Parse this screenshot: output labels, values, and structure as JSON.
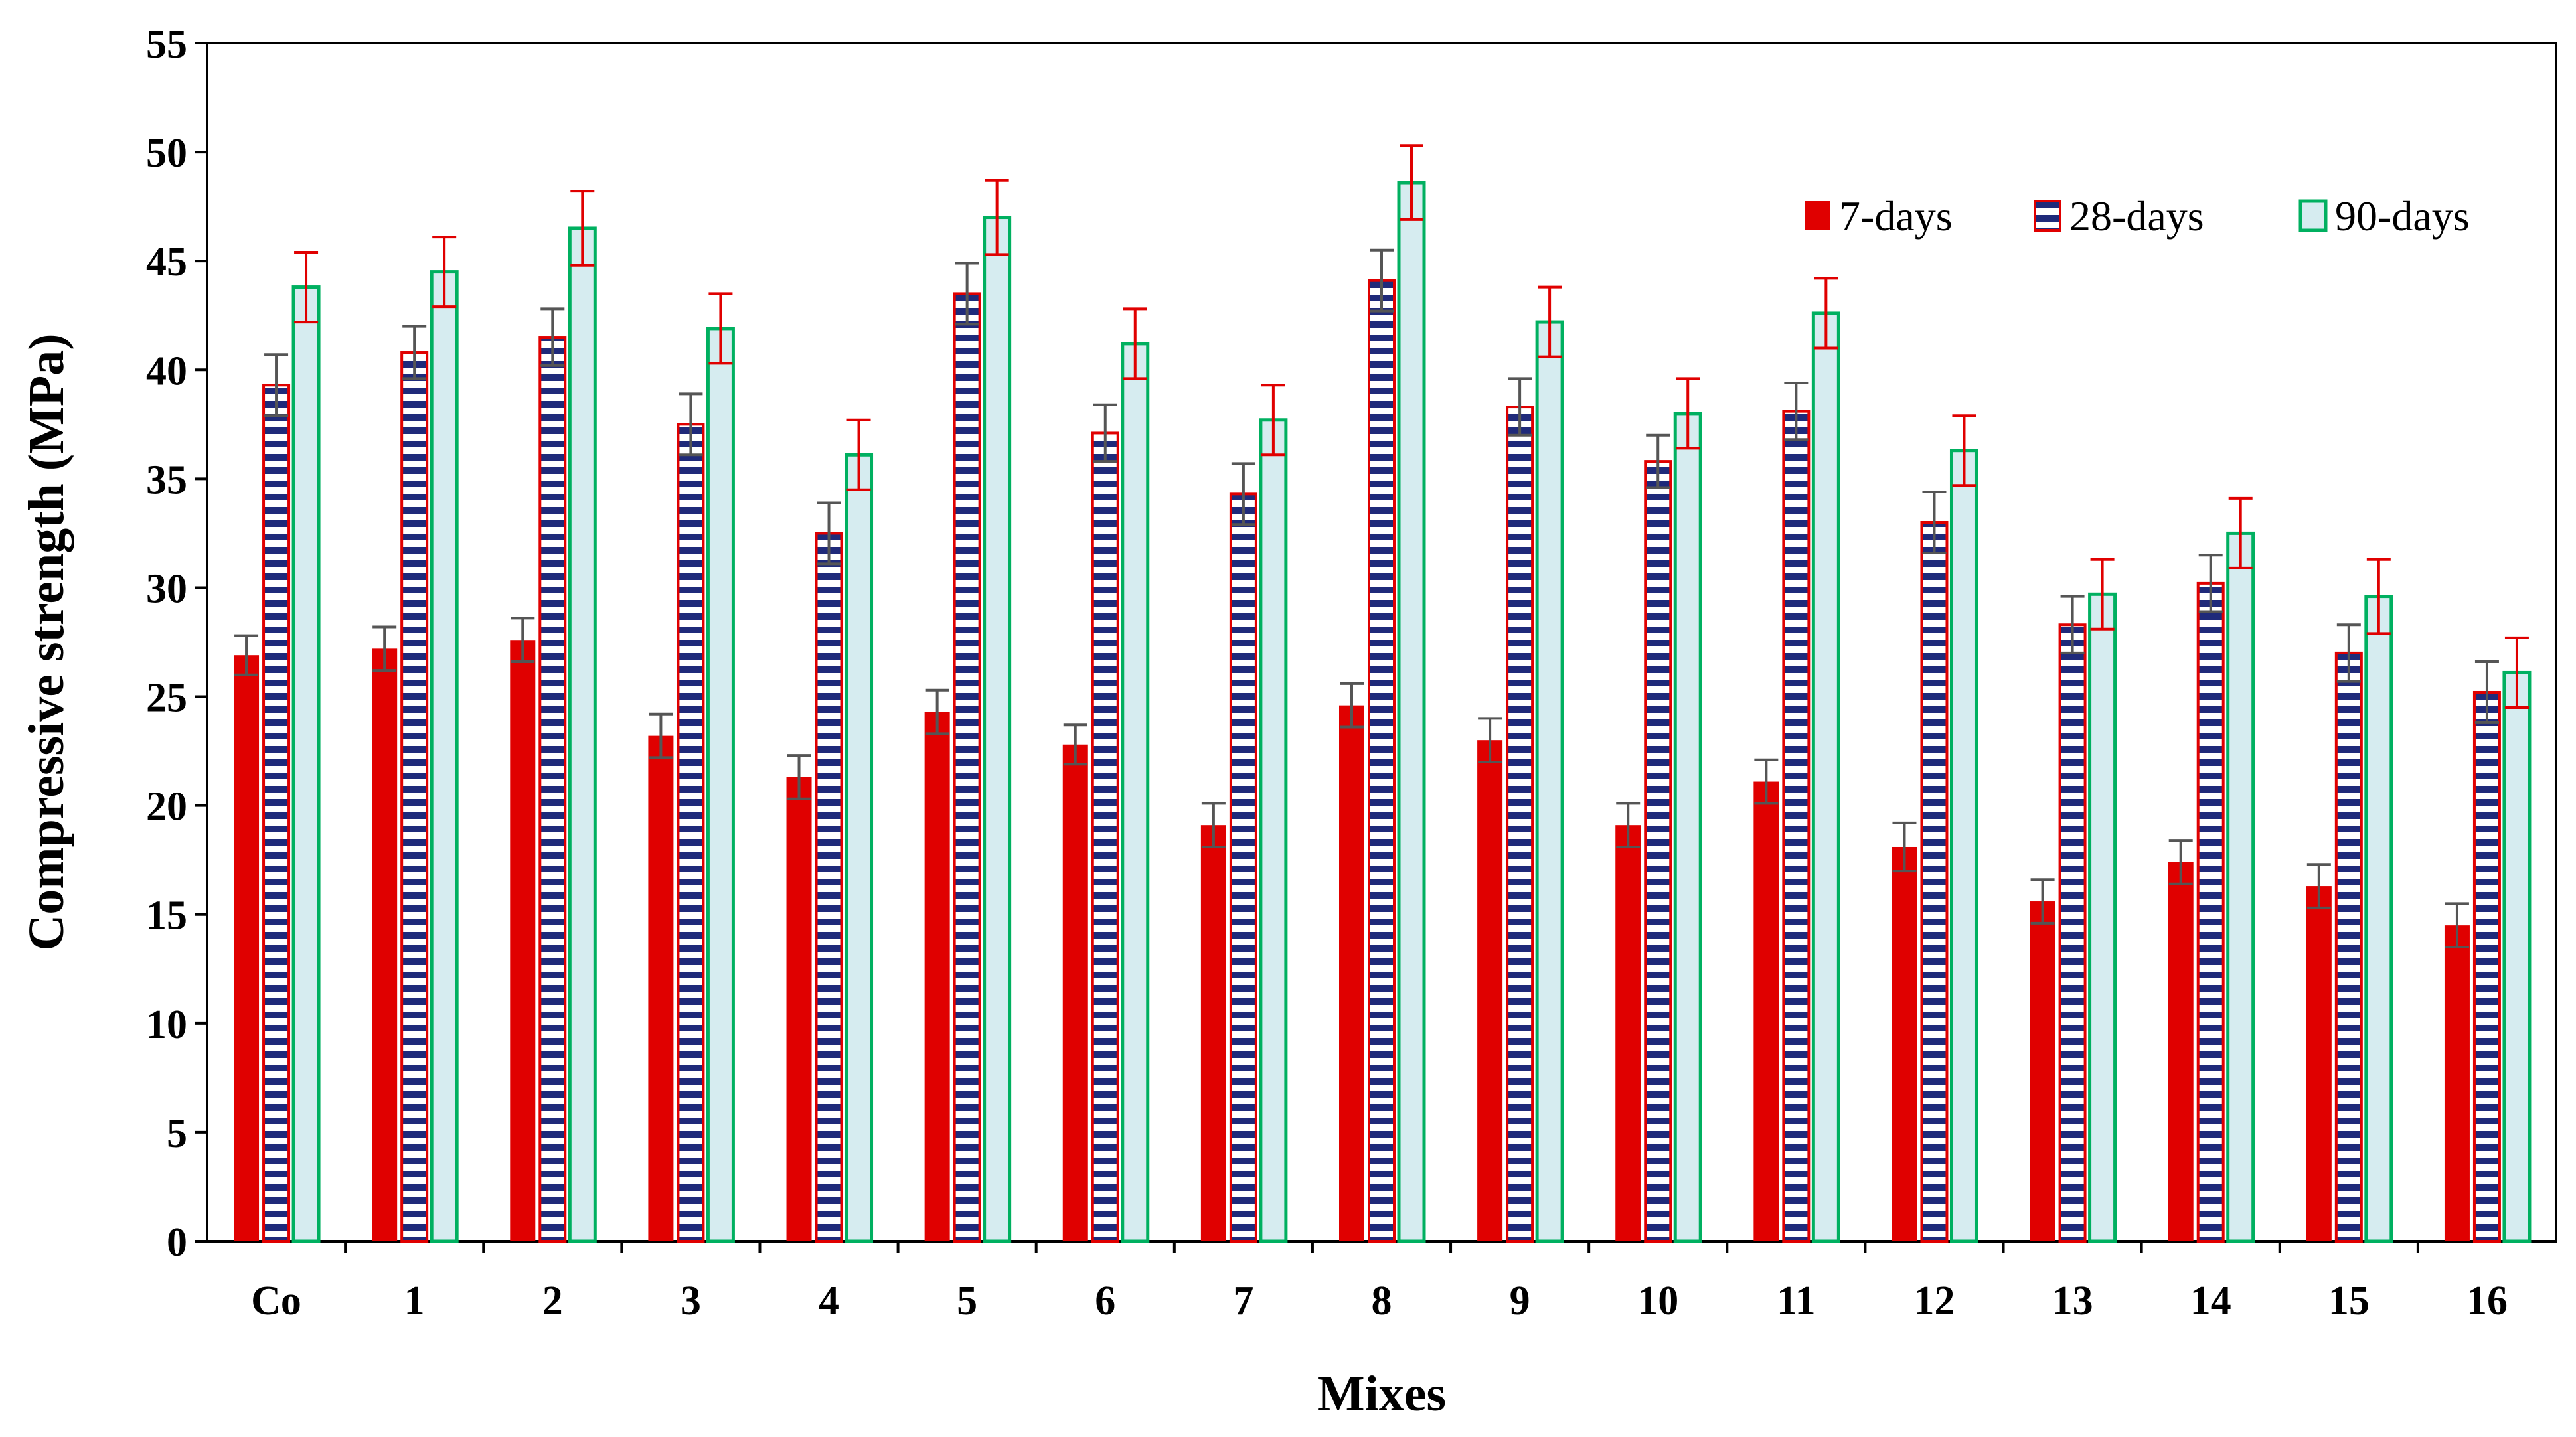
{
  "chart_data": {
    "type": "bar",
    "title": "",
    "xlabel": "Mixes",
    "ylabel": "Compressive strength (MPa)",
    "ylim": [
      0,
      55
    ],
    "yticks": [
      0,
      5,
      10,
      15,
      20,
      25,
      30,
      35,
      40,
      45,
      50,
      55
    ],
    "grid": false,
    "legend_position": "top-right",
    "categories": [
      "Co",
      "1",
      "2",
      "3",
      "4",
      "5",
      "6",
      "7",
      "8",
      "9",
      "10",
      "11",
      "12",
      "13",
      "14",
      "15",
      "16"
    ],
    "series": [
      {
        "name": "7-days",
        "color": "#e00000",
        "style": "solid",
        "values": [
          26.9,
          27.2,
          27.6,
          23.2,
          21.3,
          24.3,
          22.8,
          19.1,
          24.6,
          23.0,
          19.1,
          21.1,
          18.1,
          15.6,
          17.4,
          16.3,
          14.5
        ],
        "errors": [
          0.9,
          1.0,
          1.0,
          1.0,
          1.0,
          1.0,
          0.9,
          1.0,
          1.0,
          1.0,
          1.0,
          1.0,
          1.1,
          1.0,
          1.0,
          1.0,
          1.0
        ]
      },
      {
        "name": "28-days",
        "color": "#1f2a7a",
        "edge_color": "#e00000",
        "style": "horizontal-stripes",
        "values": [
          39.3,
          40.8,
          41.5,
          37.5,
          32.5,
          43.5,
          37.1,
          34.3,
          44.1,
          38.3,
          35.8,
          38.1,
          33.0,
          28.3,
          30.2,
          27.0,
          25.2
        ],
        "errors": [
          1.4,
          1.2,
          1.3,
          1.4,
          1.4,
          1.4,
          1.3,
          1.4,
          1.4,
          1.3,
          1.2,
          1.3,
          1.4,
          1.3,
          1.3,
          1.3,
          1.4
        ]
      },
      {
        "name": "90-days",
        "color": "#d6ecf0",
        "edge_color": "#00b060",
        "error_color": "#e00000",
        "style": "light-fill",
        "values": [
          43.8,
          44.5,
          46.5,
          41.9,
          36.1,
          47.0,
          41.2,
          37.7,
          48.6,
          42.2,
          38.0,
          42.6,
          36.3,
          29.7,
          32.5,
          29.6,
          26.1
        ],
        "errors": [
          1.6,
          1.6,
          1.7,
          1.6,
          1.6,
          1.7,
          1.6,
          1.6,
          1.7,
          1.6,
          1.6,
          1.6,
          1.6,
          1.6,
          1.6,
          1.7,
          1.6
        ]
      }
    ]
  }
}
